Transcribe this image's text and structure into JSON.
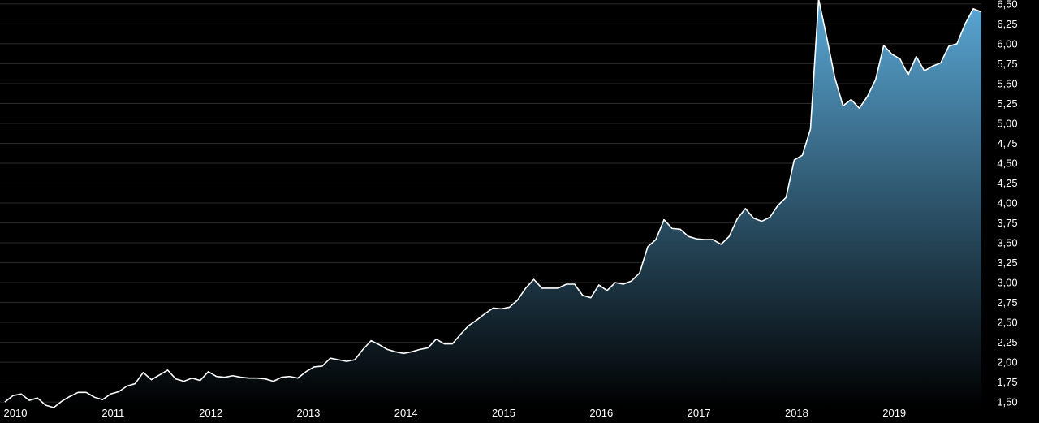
{
  "chart_data": {
    "type": "area",
    "title": "",
    "xlabel": "",
    "ylabel": "",
    "ylim": [
      1.45,
      6.55
    ],
    "y_ticks": [
      "1,50",
      "1,75",
      "2,00",
      "2,25",
      "2,50",
      "2,75",
      "3,00",
      "3,25",
      "3,50",
      "3,75",
      "4,00",
      "4,25",
      "4,50",
      "4,75",
      "5,00",
      "5,25",
      "5,50",
      "5,75",
      "6,00",
      "6,25",
      "6,50"
    ],
    "x_ticks": [
      "2010",
      "2011",
      "2012",
      "2013",
      "2014",
      "2015",
      "2016",
      "2017",
      "2018",
      "2019"
    ],
    "grid": true,
    "colors": {
      "line": "#ffffff",
      "fill_top": "#5aa8d6",
      "fill_bottom": "#000000",
      "grid": "#2a2a2a",
      "background": "#000000"
    },
    "series": [
      {
        "x": [
          "2010-01",
          "2010-02",
          "2010-03",
          "2010-04",
          "2010-05",
          "2010-06",
          "2010-07",
          "2010-08",
          "2010-09",
          "2010-10",
          "2010-11",
          "2010-12",
          "2011-01",
          "2011-02",
          "2011-03",
          "2011-04",
          "2011-05",
          "2011-06",
          "2011-07",
          "2011-08",
          "2011-09",
          "2011-10",
          "2011-11",
          "2011-12",
          "2012-01",
          "2012-02",
          "2012-03",
          "2012-04",
          "2012-05",
          "2012-06",
          "2012-07",
          "2012-08",
          "2012-09",
          "2012-10",
          "2012-11",
          "2012-12",
          "2013-01",
          "2013-02",
          "2013-03",
          "2013-04",
          "2013-05",
          "2013-06",
          "2013-07",
          "2013-08",
          "2013-09",
          "2013-10",
          "2013-11",
          "2013-12",
          "2014-01",
          "2014-02",
          "2014-03",
          "2014-04",
          "2014-05",
          "2014-06",
          "2014-07",
          "2014-08",
          "2014-09",
          "2014-10",
          "2014-11",
          "2014-12",
          "2015-01",
          "2015-02",
          "2015-03",
          "2015-04",
          "2015-05",
          "2015-06",
          "2015-07",
          "2015-08",
          "2015-09",
          "2015-10",
          "2015-11",
          "2015-12",
          "2016-01",
          "2016-02",
          "2016-03",
          "2016-04",
          "2016-05",
          "2016-06",
          "2016-07",
          "2016-08",
          "2016-09",
          "2016-10",
          "2016-11",
          "2016-12",
          "2017-01",
          "2017-02",
          "2017-03",
          "2017-04",
          "2017-05",
          "2017-06",
          "2017-07",
          "2017-08",
          "2017-09",
          "2017-10",
          "2017-11",
          "2017-12",
          "2018-01",
          "2018-02",
          "2018-03",
          "2018-04",
          "2018-05",
          "2018-06",
          "2018-07",
          "2018-08",
          "2018-09",
          "2018-10",
          "2018-11",
          "2018-12",
          "2019-01",
          "2019-02",
          "2019-03",
          "2019-04",
          "2019-05",
          "2019-06",
          "2019-07",
          "2019-08",
          "2019-09",
          "2019-10",
          "2019-11",
          "2019-12",
          "2020-01"
        ],
        "values": [
          1.5,
          1.58,
          1.6,
          1.52,
          1.55,
          1.46,
          1.43,
          1.51,
          1.57,
          1.62,
          1.62,
          1.56,
          1.53,
          1.6,
          1.63,
          1.7,
          1.73,
          1.87,
          1.78,
          1.84,
          1.9,
          1.79,
          1.76,
          1.8,
          1.77,
          1.88,
          1.82,
          1.81,
          1.83,
          1.81,
          1.8,
          1.8,
          1.79,
          1.76,
          1.81,
          1.82,
          1.8,
          1.88,
          1.94,
          1.95,
          2.05,
          2.03,
          2.01,
          2.03,
          2.16,
          2.27,
          2.22,
          2.16,
          2.13,
          2.11,
          2.13,
          2.16,
          2.18,
          2.29,
          2.23,
          2.23,
          2.35,
          2.46,
          2.53,
          2.61,
          2.68,
          2.67,
          2.69,
          2.78,
          2.93,
          3.04,
          2.93,
          2.93,
          2.93,
          2.98,
          2.98,
          2.84,
          2.81,
          2.97,
          2.9,
          3.0,
          2.98,
          3.02,
          3.12,
          3.45,
          3.54,
          3.79,
          3.68,
          3.67,
          3.58,
          3.55,
          3.54,
          3.54,
          3.48,
          3.58,
          3.8,
          3.93,
          3.81,
          3.77,
          3.82,
          3.97,
          4.07,
          4.54,
          4.6,
          4.93,
          6.56,
          6.08,
          5.57,
          5.22,
          5.3,
          5.19,
          5.34,
          5.55,
          5.98,
          5.87,
          5.81,
          5.61,
          5.84,
          5.66,
          5.72,
          5.76,
          5.97,
          6.0,
          6.25,
          6.44,
          6.4
        ]
      }
    ]
  }
}
